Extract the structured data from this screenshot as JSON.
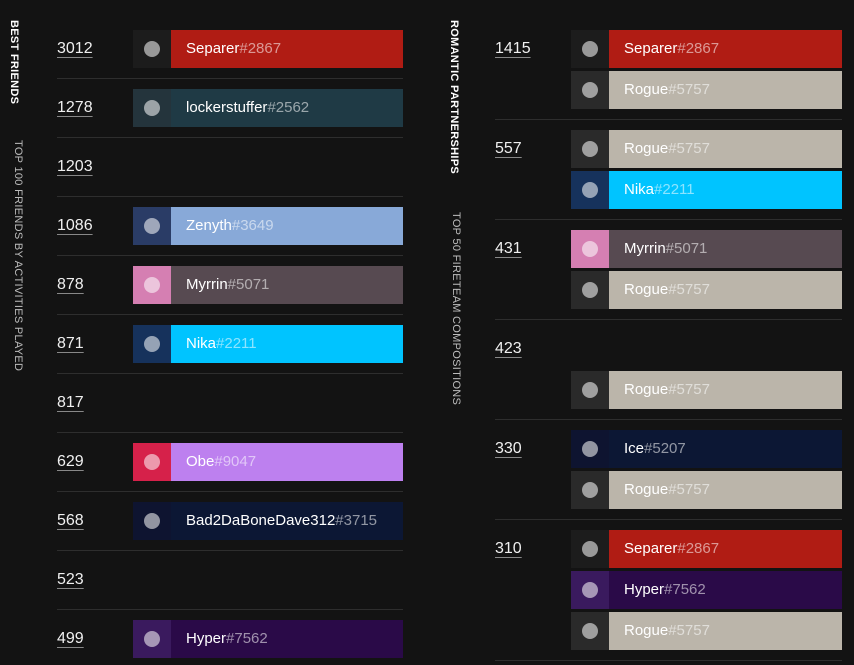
{
  "best_friends": {
    "title": "BEST FRIENDS",
    "subtitle": "TOP 100 FRIENDS BY ACTIVITIES PLAYED",
    "rows": [
      {
        "count": "3012",
        "player": {
          "name": "Separer",
          "tag": "#2867",
          "color": "#b01c14",
          "emblem": "#1c1c1c"
        }
      },
      {
        "count": "1278",
        "player": {
          "name": "lockerstuffer",
          "tag": "#2562",
          "color": "#1f3a45",
          "emblem": "#24343c"
        }
      },
      {
        "count": "1203",
        "player": null
      },
      {
        "count": "1086",
        "player": {
          "name": "Zenyth",
          "tag": "#3649",
          "color": "#88a9d8",
          "emblem": "#2a3c66"
        }
      },
      {
        "count": "878",
        "player": {
          "name": "Myrrin",
          "tag": "#5071",
          "color": "#574a51",
          "emblem": "#d57fb2"
        }
      },
      {
        "count": "871",
        "player": {
          "name": "Nika",
          "tag": "#2211",
          "color": "#00c4ff",
          "emblem": "#16325c"
        }
      },
      {
        "count": "817",
        "player": null
      },
      {
        "count": "629",
        "player": {
          "name": "Obe",
          "tag": "#9047",
          "color": "#bd80ef",
          "emblem": "#d6214a"
        }
      },
      {
        "count": "568",
        "player": {
          "name": "Bad2DaBoneDave312",
          "tag": "#3715",
          "color": "#0c1734",
          "emblem": "#0e1430"
        }
      },
      {
        "count": "523",
        "player": null
      },
      {
        "count": "499",
        "player": {
          "name": "Hyper",
          "tag": "#7562",
          "color": "#2a0a48",
          "emblem": "#3a1a5e"
        }
      }
    ]
  },
  "romantic_partnerships": {
    "title": "ROMANTIC PARTNERSHIPS",
    "subtitle": "TOP 50 FIRETEAM COMPOSITIONS",
    "groups": [
      {
        "count": "1415",
        "members": [
          {
            "name": "Separer",
            "tag": "#2867",
            "color": "#b01c14",
            "emblem": "#1c1c1c"
          },
          {
            "name": "Rogue",
            "tag": "#5757",
            "color": "#bbb5aa",
            "emblem": "#2a2a2a"
          }
        ]
      },
      {
        "count": "557",
        "members": [
          {
            "name": "Rogue",
            "tag": "#5757",
            "color": "#bbb5aa",
            "emblem": "#2a2a2a"
          },
          {
            "name": "Nika",
            "tag": "#2211",
            "color": "#00c4ff",
            "emblem": "#16325c"
          }
        ]
      },
      {
        "count": "431",
        "members": [
          {
            "name": "Myrrin",
            "tag": "#5071",
            "color": "#574a51",
            "emblem": "#d57fb2"
          },
          {
            "name": "Rogue",
            "tag": "#5757",
            "color": "#bbb5aa",
            "emblem": "#2a2a2a"
          }
        ]
      },
      {
        "count": "423",
        "members": [
          null,
          {
            "name": "Rogue",
            "tag": "#5757",
            "color": "#bbb5aa",
            "emblem": "#2a2a2a"
          }
        ]
      },
      {
        "count": "330",
        "members": [
          {
            "name": "Ice",
            "tag": "#5207",
            "color": "#0c1734",
            "emblem": "#0e1430"
          },
          {
            "name": "Rogue",
            "tag": "#5757",
            "color": "#bbb5aa",
            "emblem": "#2a2a2a"
          }
        ]
      },
      {
        "count": "310",
        "members": [
          {
            "name": "Separer",
            "tag": "#2867",
            "color": "#b01c14",
            "emblem": "#1c1c1c"
          },
          {
            "name": "Hyper",
            "tag": "#7562",
            "color": "#2a0a48",
            "emblem": "#3a1a5e"
          },
          {
            "name": "Rogue",
            "tag": "#5757",
            "color": "#bbb5aa",
            "emblem": "#2a2a2a"
          }
        ]
      }
    ]
  }
}
